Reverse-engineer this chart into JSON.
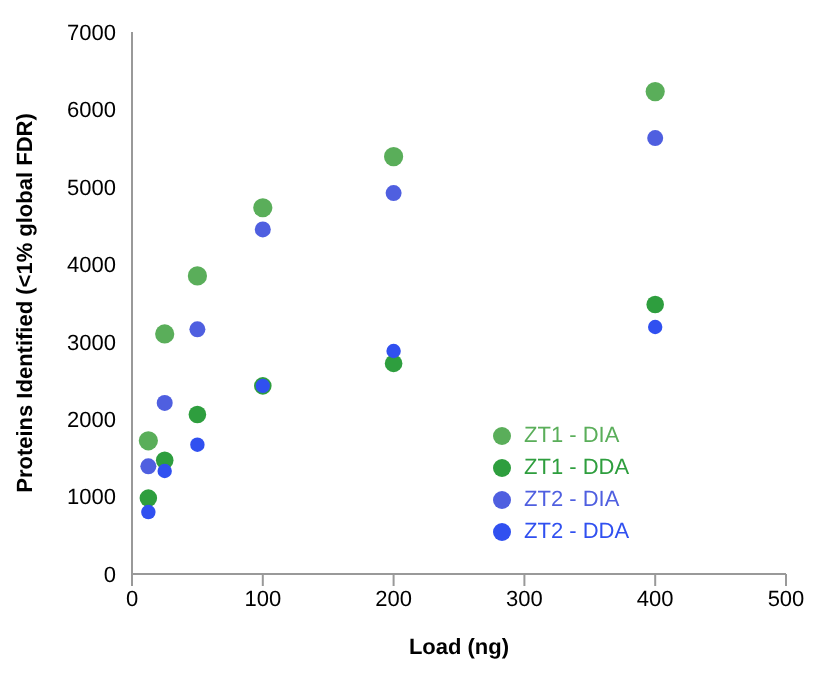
{
  "chart_data": {
    "type": "scatter",
    "xlabel": "Load (ng)",
    "ylabel": "Proteins Identified (<1% global FDR)",
    "xlim": [
      0,
      500
    ],
    "xticks": [
      0,
      100,
      200,
      300,
      400,
      500
    ],
    "ylim": [
      0,
      7000
    ],
    "yticks": [
      0,
      1000,
      2000,
      3000,
      4000,
      5000,
      6000,
      7000
    ],
    "grid": false,
    "legend": "bottom right",
    "marker": "circle",
    "series": [
      {
        "name": "ZT1 - DIA",
        "color": "#5aae5a",
        "x": [
          12.5,
          25,
          50,
          100,
          200,
          400
        ],
        "values": [
          1720,
          3100,
          3850,
          4730,
          5390,
          6230
        ]
      },
      {
        "name": "ZT1 - DDA",
        "color": "#2e9e3e",
        "x": [
          12.5,
          25,
          50,
          100,
          200,
          400
        ],
        "values": [
          980,
          1470,
          2060,
          2430,
          2720,
          3480
        ]
      },
      {
        "name": "ZT2 - DIA",
        "color": "#4f5fe0",
        "x": [
          12.5,
          25,
          50,
          100,
          200,
          400
        ],
        "values": [
          1390,
          2210,
          3160,
          4450,
          4920,
          5630
        ]
      },
      {
        "name": "ZT2 - DDA",
        "color": "#3050f0",
        "x": [
          12.5,
          25,
          50,
          100,
          200,
          400
        ],
        "values": [
          800,
          1330,
          1670,
          2430,
          2880,
          3190
        ]
      }
    ]
  }
}
